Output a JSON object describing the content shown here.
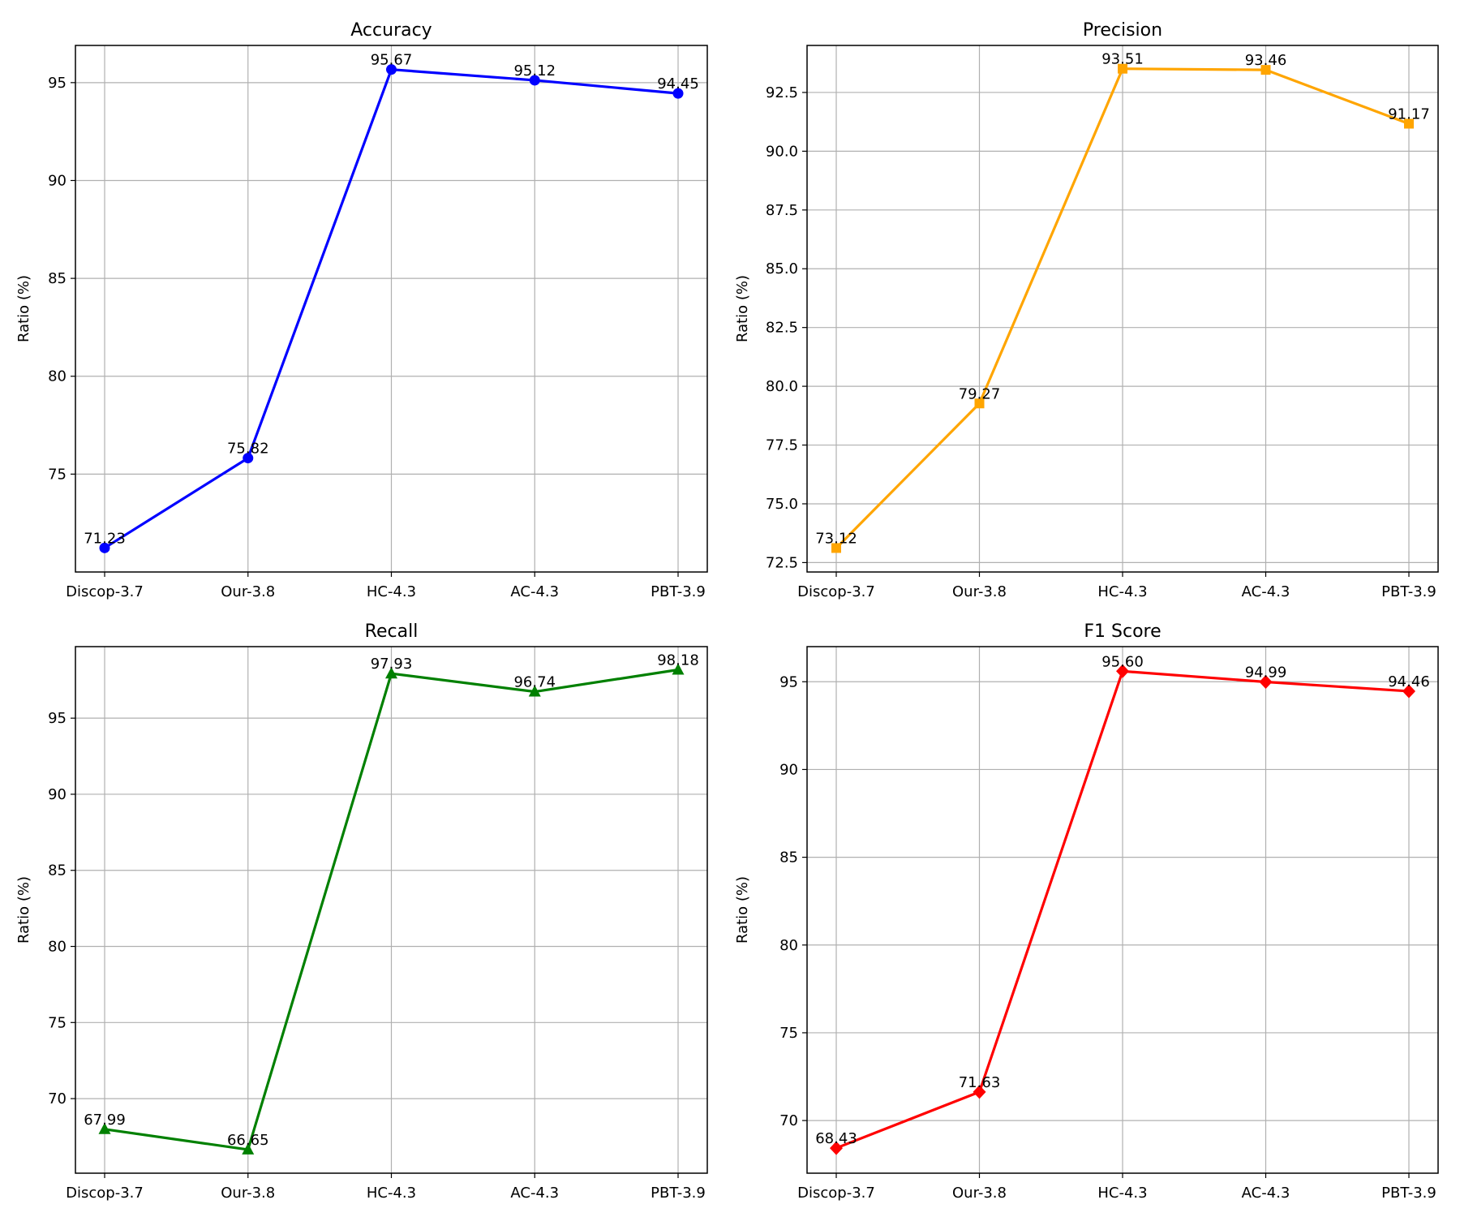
{
  "chart_data": [
    {
      "type": "line",
      "title": "Accuracy",
      "ylabel": "Ratio (%)",
      "categories": [
        "Discop-3.7",
        "Our-3.8",
        "HC-4.3",
        "AC-4.3",
        "PBT-3.9"
      ],
      "series": [
        {
          "values": [
            71.23,
            75.82,
            95.67,
            95.12,
            94.45
          ],
          "color": "#0000ff",
          "marker": "circle"
        }
      ],
      "data_labels": [
        "71.23",
        "75.82",
        "95.67",
        "95.12",
        "94.45"
      ],
      "ylim": [
        70.0,
        96.9
      ],
      "yticks": [
        75,
        80,
        85,
        90,
        95
      ],
      "ytick_labels": [
        "75",
        "80",
        "85",
        "90",
        "95"
      ],
      "grid": true
    },
    {
      "type": "line",
      "title": "Precision",
      "ylabel": "Ratio (%)",
      "categories": [
        "Discop-3.7",
        "Our-3.8",
        "HC-4.3",
        "AC-4.3",
        "PBT-3.9"
      ],
      "series": [
        {
          "values": [
            73.12,
            79.27,
            93.51,
            93.46,
            91.17
          ],
          "color": "#ffa500",
          "marker": "square"
        }
      ],
      "data_labels": [
        "73.12",
        "79.27",
        "93.51",
        "93.46",
        "91.17"
      ],
      "ylim": [
        72.1,
        94.5
      ],
      "yticks": [
        72.5,
        75.0,
        77.5,
        80.0,
        82.5,
        85.0,
        87.5,
        90.0,
        92.5
      ],
      "ytick_labels": [
        "72.5",
        "75.0",
        "77.5",
        "80.0",
        "82.5",
        "85.0",
        "87.5",
        "90.0",
        "92.5"
      ],
      "grid": true
    },
    {
      "type": "line",
      "title": "Recall",
      "ylabel": "Ratio (%)",
      "categories": [
        "Discop-3.7",
        "Our-3.8",
        "HC-4.3",
        "AC-4.3",
        "PBT-3.9"
      ],
      "series": [
        {
          "values": [
            67.99,
            66.65,
            97.93,
            96.74,
            98.18
          ],
          "color": "#008000",
          "marker": "triangle"
        }
      ],
      "data_labels": [
        "67.99",
        "66.65",
        "97.93",
        "96.74",
        "98.18"
      ],
      "ylim": [
        65.1,
        99.7
      ],
      "yticks": [
        70,
        75,
        80,
        85,
        90,
        95
      ],
      "ytick_labels": [
        "70",
        "75",
        "80",
        "85",
        "90",
        "95"
      ],
      "grid": true
    },
    {
      "type": "line",
      "title": "F1 Score",
      "ylabel": "Ratio (%)",
      "categories": [
        "Discop-3.7",
        "Our-3.8",
        "HC-4.3",
        "AC-4.3",
        "PBT-3.9"
      ],
      "series": [
        {
          "values": [
            68.43,
            71.63,
            95.6,
            94.99,
            94.46
          ],
          "color": "#ff0000",
          "marker": "diamond"
        }
      ],
      "data_labels": [
        "68.43",
        "71.63",
        "95.60",
        "94.99",
        "94.46"
      ],
      "ylim": [
        67.0,
        97.0
      ],
      "yticks": [
        70,
        75,
        80,
        85,
        90,
        95
      ],
      "ytick_labels": [
        "70",
        "75",
        "80",
        "85",
        "90",
        "95"
      ],
      "grid": true
    }
  ]
}
